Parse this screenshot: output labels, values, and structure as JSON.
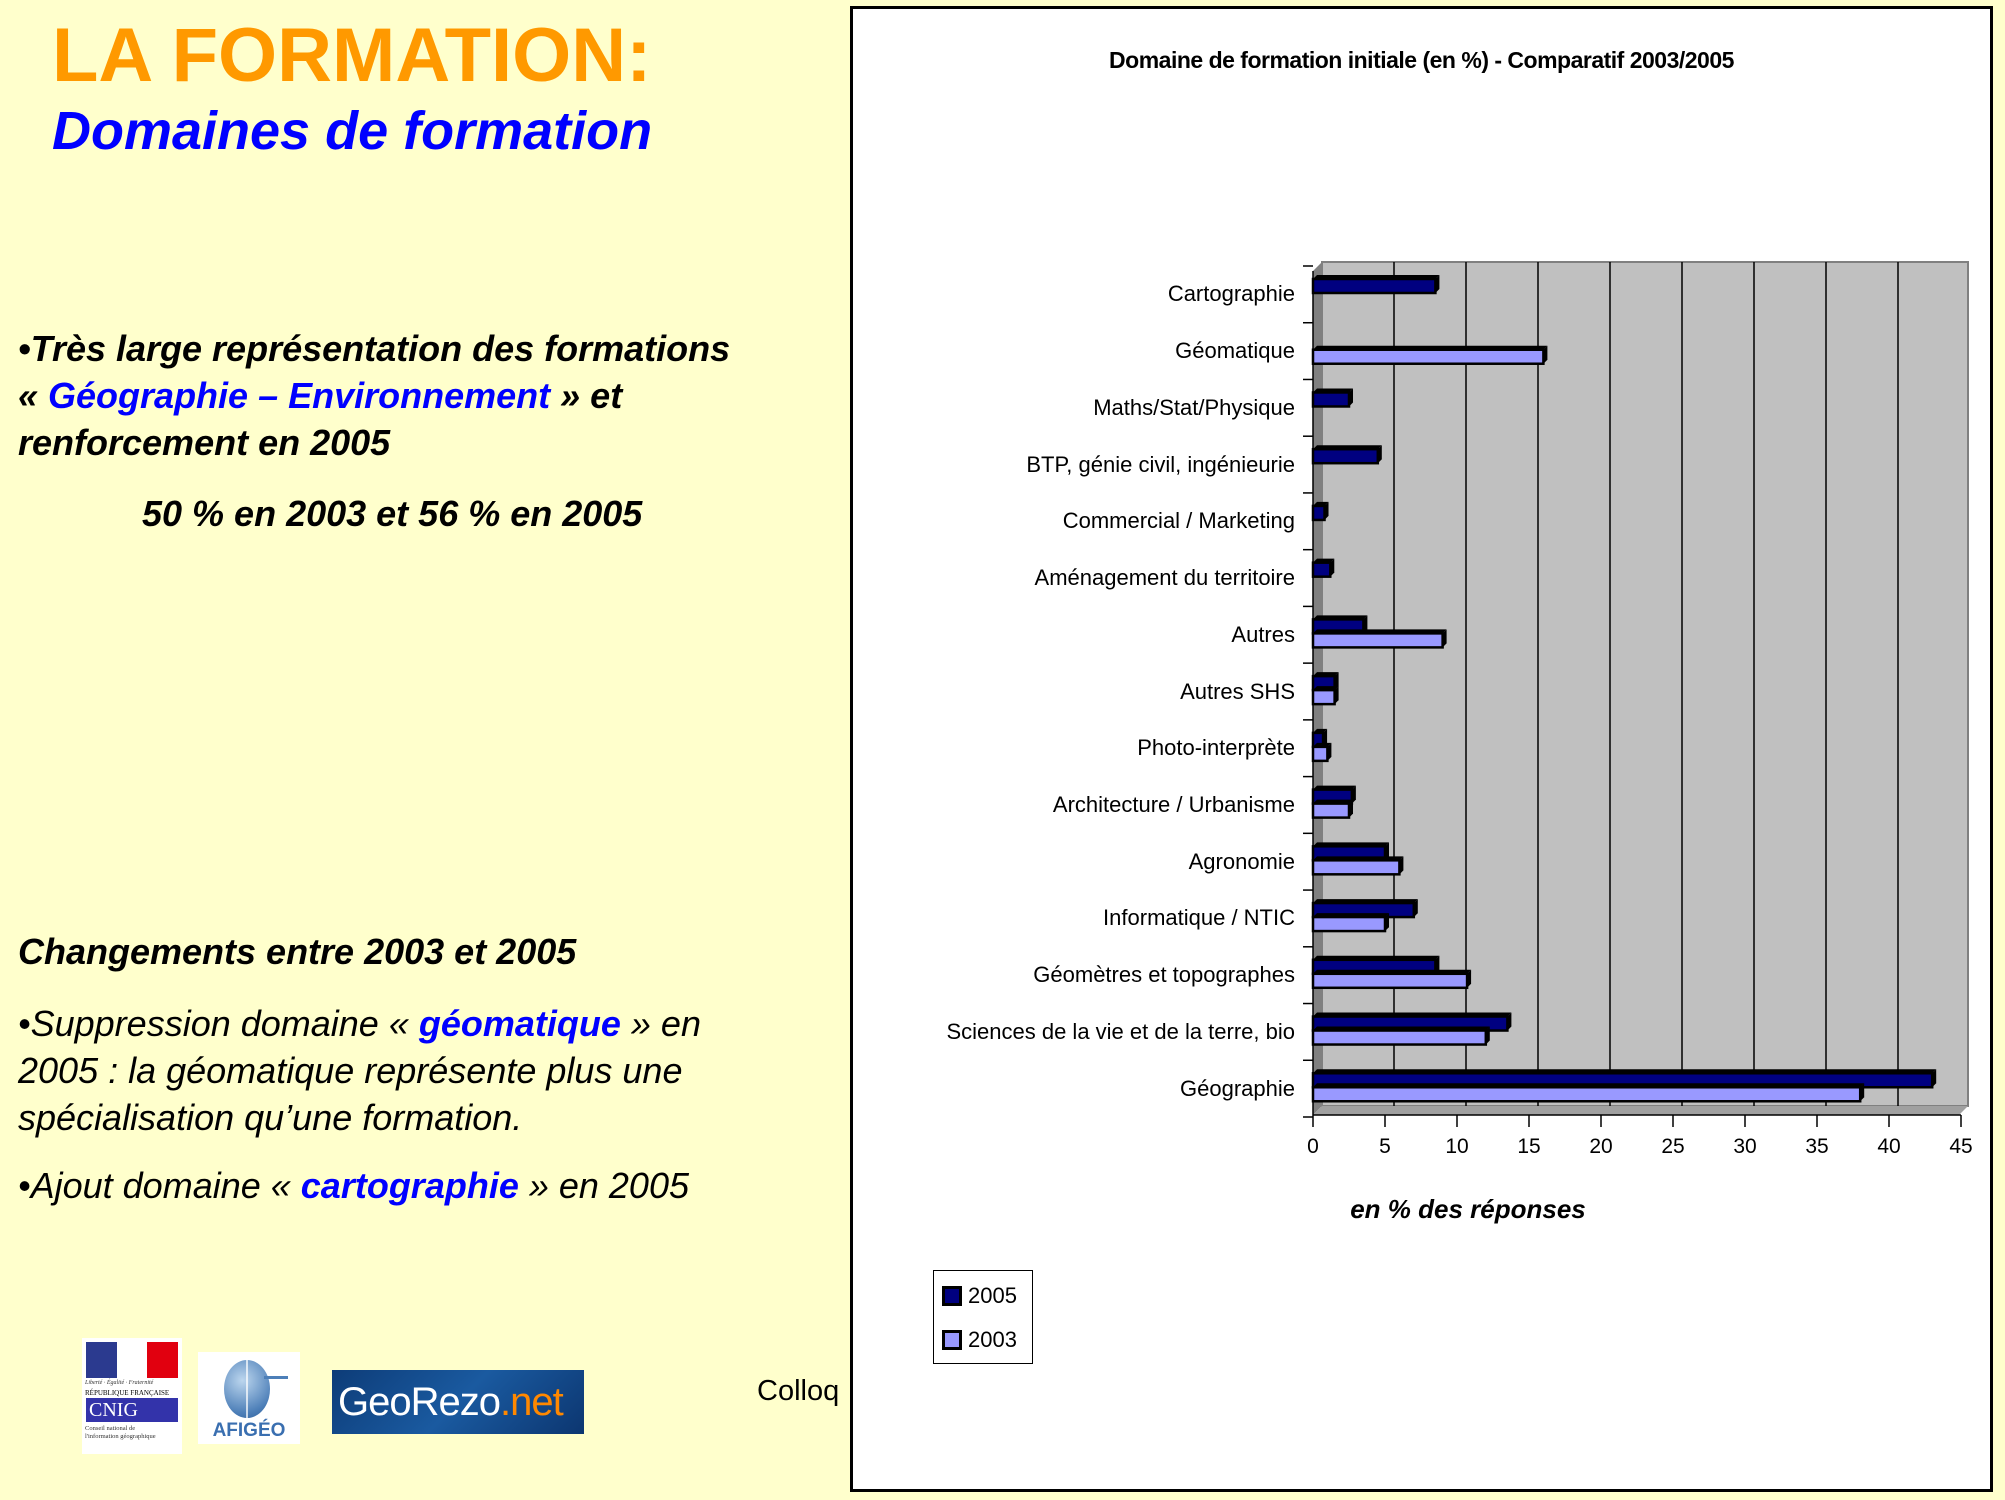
{
  "slide": {
    "title": "LA FORMATION:",
    "subtitle": "Domaines de formation",
    "bullet1": {
      "line1": "•Très large représentation des formations",
      "quote_open": "« ",
      "highlight": "Géographie – Environnement",
      "quote_close": " » et",
      "line3": "renforcement en 2005",
      "stat": "50 % en 2003 et  56 % en 2005"
    },
    "changes_heading": "Changements entre 2003 et 2005",
    "bullet2": {
      "prefix": "•Suppression domaine « ",
      "highlight": "géomatique",
      "suffix": " »  en",
      "line2": "2005  : la géomatique représente plus une",
      "line3": "spécialisation qu’une formation."
    },
    "bullet3": {
      "prefix": "•Ajout domaine « ",
      "highlight": "cartographie",
      "suffix": " » en 2005"
    },
    "footer_text": "Colloq",
    "logos": {
      "cnig": {
        "liberte": "Liberté · Égalité · Fraternité",
        "republique": "RÉPUBLIQUE FRANÇAISE",
        "name": "CNIG",
        "sub1": "Conseil national de",
        "sub2": "l'information géographique"
      },
      "afigeo": "AFIGÉO",
      "georezo_main": "GeoRezo",
      "georezo_ext": ".net"
    }
  },
  "colors": {
    "background": "#FFFFCC",
    "title_orange": "#FF9900",
    "accent_blue": "#0000FF",
    "series_2005": "#000080",
    "series_2003": "#9999FF",
    "plot_bg": "#C0C0C0"
  },
  "chart_data": {
    "type": "bar",
    "orientation": "horizontal",
    "title": "Domaine de formation initiale (en %) - Comparatif 2003/2005",
    "xlabel": "en % des réponses",
    "ylabel": "",
    "categories": [
      "Cartographie",
      "Géomatique",
      "Maths/Stat/Physique",
      "BTP, génie civil, ingénieurie",
      "Commercial / Marketing",
      "Aménagement du territoire",
      "Autres",
      "Autres SHS",
      "Photo-interprète",
      "Architecture / Urbanisme",
      "Agronomie",
      "Informatique / NTIC",
      "Géomètres et topographes",
      "Sciences de la vie et de la terre, bio",
      "Géographie"
    ],
    "series": [
      {
        "name": "2005",
        "color": "#000080",
        "values": [
          8.5,
          0,
          2.5,
          4.5,
          0.8,
          1.2,
          3.5,
          1.5,
          0.7,
          2.7,
          5,
          7,
          8.5,
          13.5,
          43
        ]
      },
      {
        "name": "2003",
        "color": "#9999FF",
        "values": [
          0,
          16,
          0,
          0,
          0,
          0,
          9,
          1.5,
          1,
          2.5,
          6,
          5,
          10.7,
          12,
          38
        ]
      }
    ],
    "xticks": [
      "0",
      "5",
      "10",
      "15",
      "20",
      "25",
      "30",
      "35",
      "40",
      "45"
    ],
    "xlim": [
      0,
      45
    ],
    "grid": true,
    "legend": {
      "position": "bottom-left",
      "entries": [
        "2005",
        "2003"
      ]
    },
    "style": "3d-clustered-bar"
  }
}
